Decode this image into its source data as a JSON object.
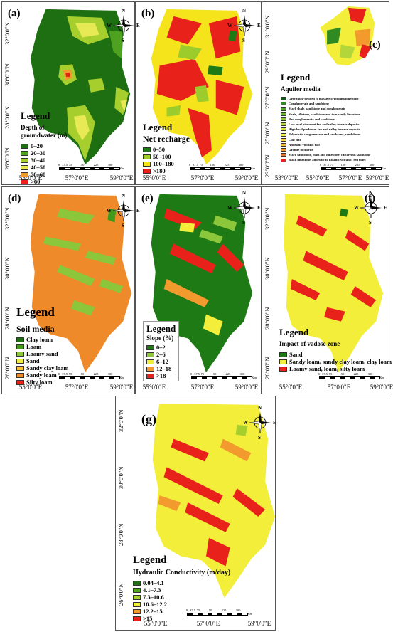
{
  "panels": [
    {
      "id": "a",
      "label": "(a)",
      "y_labels": [
        "32°0'0\"N",
        "30°0'0\"N",
        "28°0'0\"N",
        "26°0'0\"N"
      ],
      "x_labels": [
        "55°0'0\"E",
        "57°0'0\"E",
        "59°0'0\"E"
      ],
      "legend": {
        "title": "Legend",
        "subtitle": "Depth of groundwater (m)",
        "items": [
          {
            "label": "0–20",
            "color": "#1e6e12"
          },
          {
            "label": "20–30",
            "color": "#4fa21f"
          },
          {
            "label": "30–40",
            "color": "#a6cf2e"
          },
          {
            "label": "40–50",
            "color": "#e8ea55"
          },
          {
            "label": "50–60",
            "color": "#f29a2e"
          },
          {
            "label": ">60",
            "color": "#e8221b"
          }
        ]
      }
    },
    {
      "id": "b",
      "label": "(b)",
      "y_labels": [],
      "x_labels": [
        "55°0'0\"E",
        "57°0'0\"E",
        "59°0'0\"E"
      ],
      "legend": {
        "title": "Legend",
        "subtitle": "Net recharge",
        "items": [
          {
            "label": "0–50",
            "color": "#1e7a14"
          },
          {
            "label": "50–100",
            "color": "#9ccc2c"
          },
          {
            "label": "100–180",
            "color": "#f5e41c"
          },
          {
            "label": ">180",
            "color": "#e8221b"
          }
        ]
      }
    },
    {
      "id": "c",
      "label": "(c)",
      "y_labels": [
        "31°0'0\"N",
        "29°0'0\"N",
        "27°0'0\"N",
        "25°0'0\"N",
        "23°0'0\"N"
      ],
      "x_labels": [
        "53°0'0\"E",
        "55°0'0\"E",
        "57°0'0\"E",
        "59°0'0\"E"
      ],
      "legend": {
        "title": "Legend",
        "subtitle": "Aquifer media",
        "items": [
          {
            "label": "Grey thick-bedded to massive orbitolina limestone",
            "color": "#0d5e12"
          },
          {
            "label": "Conglomerate and sandstone",
            "color": "#2f8a22"
          },
          {
            "label": "Marl, shale, sandstone and conglomerate",
            "color": "#4ea72a"
          },
          {
            "label": "Shale, siltstone, sandstone and thin sandy limestone",
            "color": "#6fbb2e"
          },
          {
            "label": "Red conglomerate and sandstone",
            "color": "#8ec937"
          },
          {
            "label": "Low level piedmont fan and valley terrace deposits",
            "color": "#b3d63a"
          },
          {
            "label": "High level piedmont fan and valley terrace deposits",
            "color": "#d6e43a"
          },
          {
            "label": "Polymictic conglomerate and sandstone, sand dunes",
            "color": "#f2ee3a"
          },
          {
            "label": "Clay flat",
            "color": "#f7d63a"
          },
          {
            "label": "Andesitic volcanic tuff",
            "color": "#f6bb33"
          },
          {
            "label": "Granite to diorite",
            "color": "#f39a2d"
          },
          {
            "label": "Marl, sandstone, marl and limestone, calcareous sandstone",
            "color": "#ee7526"
          },
          {
            "label": "Black limestone, andesitic to basaltic volcanic, red marl",
            "color": "#e8221b"
          }
        ]
      }
    },
    {
      "id": "d",
      "label": "(d)",
      "y_labels": [
        "32°0'0\"N",
        "30°0'0\"N",
        "28°0'0\"N",
        "26°0'0\"N"
      ],
      "x_labels": [
        "55°0'0\"E",
        "57°0'0\"E",
        "59°0'0\"E"
      ],
      "legend": {
        "title": "Legend",
        "subtitle": "Soil media",
        "items": [
          {
            "label": "Clay loam",
            "color": "#1e6e12"
          },
          {
            "label": "Loam",
            "color": "#3f9a1c"
          },
          {
            "label": "Loamy sand",
            "color": "#8cc63a"
          },
          {
            "label": "Sand",
            "color": "#f2ee3a"
          },
          {
            "label": "Sandy clay loam",
            "color": "#f6c23a"
          },
          {
            "label": "Sandy loam",
            "color": "#ee8a2a"
          },
          {
            "label": "Silty loam",
            "color": "#e8221b"
          }
        ]
      }
    },
    {
      "id": "e",
      "label": "(e)",
      "y_labels": [],
      "x_labels": [
        "55°0'0\"E",
        "57°0'0\"E",
        "59°0'0\"E"
      ],
      "legend": {
        "title": "Legend",
        "subtitle": "Slope (%)",
        "items": [
          {
            "label": "0–2",
            "color": "#1e7a14"
          },
          {
            "label": "2–6",
            "color": "#8cc63a"
          },
          {
            "label": "6–12",
            "color": "#f2ee3a"
          },
          {
            "label": "12–18",
            "color": "#f29a2e"
          },
          {
            "label": ">18",
            "color": "#e8221b"
          }
        ]
      }
    },
    {
      "id": "f",
      "label": "(f)",
      "y_labels": [
        "32°0'0\"N",
        "30°0'0\"N",
        "28°0'0\"N",
        "26°0'0\"N"
      ],
      "x_labels": [
        "55°0'0\"E",
        "57°0'0\"E",
        "59°0'0\"E"
      ],
      "legend": {
        "title": "Legend",
        "subtitle": "Impact of vadose zone",
        "items": [
          {
            "label": "Sand",
            "color": "#1e7a14"
          },
          {
            "label": "Sandy loam, sandy clay loam, clay loam",
            "color": "#f2ee3a"
          },
          {
            "label": "Loamy sand, loam, silty loam",
            "color": "#e8221b"
          }
        ]
      }
    },
    {
      "id": "g",
      "label": "(g)",
      "y_labels": [
        "32°0'0\"N",
        "30°0'0\"N",
        "28°0'0\"N",
        "26°0'0\"N"
      ],
      "x_labels": [
        "55°0'0\"E",
        "57°0'0\"E",
        "59°0'0\"E"
      ],
      "legend": {
        "title": "Legend",
        "subtitle": "Hydraulic Conductivity (m/day)",
        "items": [
          {
            "label": "0.04–4.1",
            "color": "#1e6e12"
          },
          {
            "label": "4.1–7.3",
            "color": "#4fa21f"
          },
          {
            "label": "7.3–10.6",
            "color": "#a6cf2e"
          },
          {
            "label": "10.6–12.2",
            "color": "#f2ee3a"
          },
          {
            "label": "12.2–15",
            "color": "#f29a2e"
          },
          {
            "label": ">15",
            "color": "#e8221b"
          }
        ]
      }
    }
  ],
  "compass": {
    "n": "N",
    "s": "S",
    "e": "E",
    "w": "W"
  },
  "scalebar": {
    "ticks": [
      "0",
      "37.5",
      "75",
      "150",
      "225",
      "300"
    ],
    "unit": "Km"
  }
}
